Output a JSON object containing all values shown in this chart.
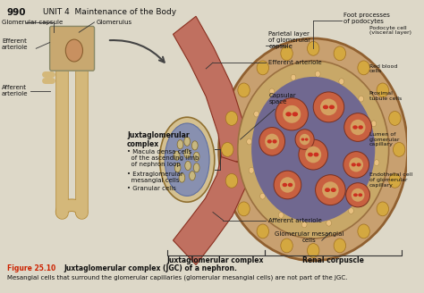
{
  "bg_color": "#ddd8c8",
  "page_number": "990",
  "unit_text": "UNIT 4  Maintenance of the Body",
  "figure_caption_red": "Figure 25.10",
  "figure_caption_bold": " Juxtaglomerular complex (JGC) of a nephron.",
  "figure_caption_normal": "Mesangial cells that surround the glomerular capillaries (glomerular mesangial cells) are not part of the JGC.",
  "nephron_color": "#d4b87a",
  "nephron_edge": "#b89040",
  "art_color": "#c07060",
  "art_dark": "#8a3020",
  "glom_outer": "#b07840",
  "glom_mid": "#c4a060",
  "glom_inner_bg": "#7a6050",
  "lobe_color": "#c86040",
  "lobe_edge": "#7a3020",
  "lobe_lumen": "#d49060",
  "rbc_color": "#cc3822",
  "capsule_bg": "#c8a070",
  "capsule_outer": "#906030",
  "macula_bg": "#d4c090",
  "macula_edge": "#907030",
  "arrow_color": "#444444"
}
